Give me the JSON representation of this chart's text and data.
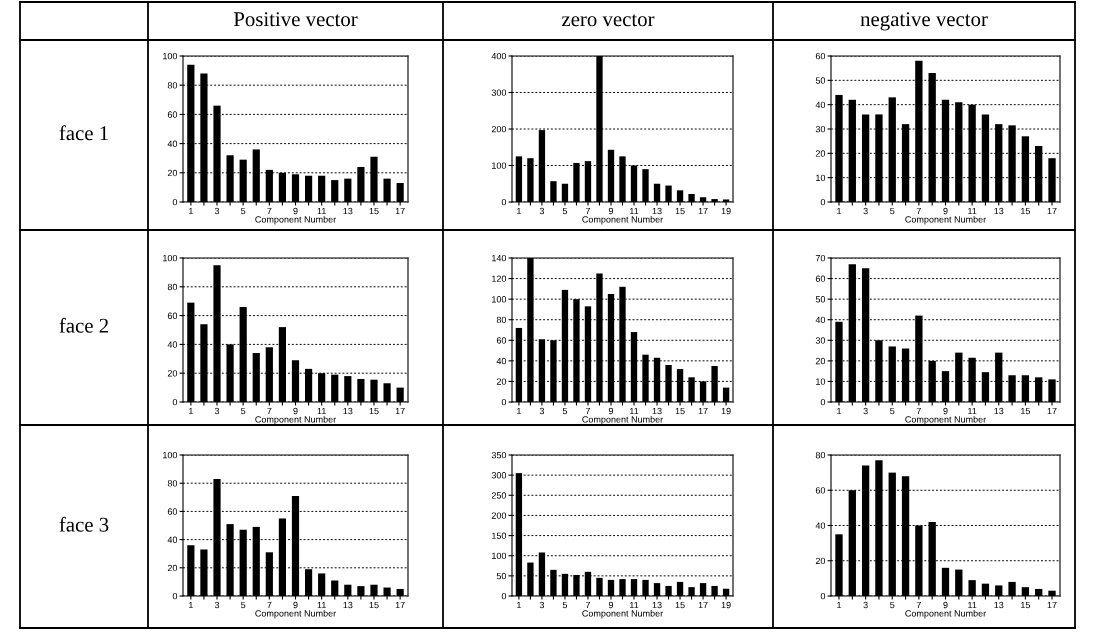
{
  "chart_data": [
    {
      "type": "bar",
      "title": "Positive vector",
      "annotations": [
        "face 1"
      ],
      "xlabel": "Component Number",
      "categories": [
        "1",
        null,
        "3",
        null,
        "5",
        null,
        "7",
        null,
        "9",
        null,
        "11",
        null,
        "13",
        null,
        "15",
        null,
        "17"
      ],
      "values": [
        94,
        88,
        66,
        32,
        29,
        36,
        22,
        20,
        19,
        18,
        18,
        15,
        16,
        24,
        31,
        16,
        13
      ],
      "color": "#000000",
      "ylim": [
        0,
        100
      ],
      "yticks": [
        0,
        20,
        40,
        60,
        80,
        100
      ],
      "grid": "y"
    },
    {
      "type": "bar",
      "title": "zero vector",
      "xlabel": "Component Number",
      "categories": [
        "1",
        null,
        "3",
        null,
        "5",
        null,
        "7",
        null,
        "9",
        null,
        "11",
        null,
        "13",
        null,
        "15",
        null,
        "17",
        null,
        "19"
      ],
      "values": [
        125,
        120,
        197,
        57,
        50,
        107,
        112,
        400,
        143,
        125,
        100,
        90,
        50,
        45,
        32,
        22,
        13,
        8,
        7
      ],
      "color": "#000000",
      "ylim": [
        0,
        400
      ],
      "yticks": [
        0,
        100,
        200,
        300,
        400
      ],
      "grid": "y"
    },
    {
      "type": "bar",
      "title": "negative vector",
      "xlabel": "Component Number",
      "categories": [
        "1",
        null,
        "3",
        null,
        "5",
        null,
        "7",
        null,
        "9",
        null,
        "11",
        null,
        "13",
        null,
        "15",
        null,
        "17"
      ],
      "values": [
        44,
        42,
        36,
        36,
        43,
        32,
        58,
        53,
        42,
        41,
        40,
        36,
        32,
        31.5,
        27,
        23,
        18
      ],
      "color": "#000000",
      "ylim": [
        0,
        60
      ],
      "yticks": [
        0,
        10,
        20,
        30,
        40,
        50,
        60
      ],
      "grid": "y"
    },
    {
      "type": "bar",
      "annotations": [
        "face 2"
      ],
      "xlabel": "Component Number",
      "categories": [
        "1",
        null,
        "3",
        null,
        "5",
        null,
        "7",
        null,
        "9",
        null,
        "11",
        null,
        "13",
        null,
        "15",
        null,
        "17"
      ],
      "values": [
        69,
        54,
        95,
        40,
        66,
        34,
        38,
        52,
        29,
        23,
        20,
        19,
        18,
        16,
        15.5,
        13,
        10
      ],
      "color": "#000000",
      "ylim": [
        0,
        100
      ],
      "yticks": [
        0,
        20,
        40,
        60,
        80,
        100
      ],
      "grid": "y"
    },
    {
      "type": "bar",
      "xlabel": "Component Number",
      "categories": [
        "1",
        null,
        "3",
        null,
        "5",
        null,
        "7",
        null,
        "9",
        null,
        "11",
        null,
        "13",
        null,
        "15",
        null,
        "17",
        null,
        "19"
      ],
      "values": [
        72,
        140,
        61,
        60,
        109,
        100,
        93,
        125,
        105,
        112,
        68,
        46,
        43,
        36,
        32,
        24,
        20,
        35,
        14
      ],
      "color": "#000000",
      "ylim": [
        0,
        140
      ],
      "yticks": [
        0,
        20,
        40,
        60,
        80,
        100,
        120,
        140
      ],
      "grid": "y"
    },
    {
      "type": "bar",
      "xlabel": "Component Number",
      "categories": [
        "1",
        null,
        "3",
        null,
        "5",
        null,
        "7",
        null,
        "9",
        null,
        "11",
        null,
        "13",
        null,
        "15",
        null,
        "17"
      ],
      "values": [
        39,
        67,
        65,
        30,
        27,
        26,
        42,
        20,
        15,
        24,
        21.5,
        14.5,
        24,
        13,
        13,
        12,
        11
      ],
      "color": "#000000",
      "ylim": [
        0,
        70
      ],
      "yticks": [
        0,
        10,
        20,
        30,
        40,
        50,
        60,
        70
      ],
      "grid": "y"
    },
    {
      "type": "bar",
      "annotations": [
        "face 3"
      ],
      "xlabel": "Component Number",
      "categories": [
        "1",
        null,
        "3",
        null,
        "5",
        null,
        "7",
        null,
        "9",
        null,
        "11",
        null,
        "13",
        null,
        "15",
        null,
        "17"
      ],
      "values": [
        36,
        33,
        83,
        51,
        47,
        49,
        31,
        55,
        71,
        19,
        16,
        11,
        8,
        7,
        8,
        6,
        5
      ],
      "color": "#000000",
      "ylim": [
        0,
        100
      ],
      "yticks": [
        0,
        20,
        40,
        60,
        80,
        100
      ],
      "grid": "y"
    },
    {
      "type": "bar",
      "xlabel": "Component Number",
      "categories": [
        "1",
        null,
        "3",
        null,
        "5",
        null,
        "7",
        null,
        "9",
        null,
        "11",
        null,
        "13",
        null,
        "15",
        null,
        "17",
        null,
        "19"
      ],
      "values": [
        305,
        83,
        108,
        65,
        55,
        52,
        60,
        45,
        40,
        42,
        42,
        40,
        32,
        25,
        35,
        22,
        32,
        25,
        18
      ],
      "color": "#000000",
      "ylim": [
        0,
        350
      ],
      "yticks": [
        0,
        50,
        100,
        150,
        200,
        250,
        300,
        350
      ],
      "grid": "y"
    },
    {
      "type": "bar",
      "xlabel": "Component Number",
      "categories": [
        "1",
        null,
        "3",
        null,
        "5",
        null,
        "7",
        null,
        "9",
        null,
        "11",
        null,
        "13",
        null,
        "15",
        null,
        "17"
      ],
      "values": [
        35,
        60,
        74,
        77,
        70,
        68,
        40,
        42,
        16,
        15,
        9,
        7,
        6,
        8,
        5,
        4,
        3
      ],
      "color": "#000000",
      "ylim": [
        0,
        80
      ],
      "yticks": [
        0,
        20,
        40,
        60,
        80
      ],
      "grid": "y"
    }
  ]
}
